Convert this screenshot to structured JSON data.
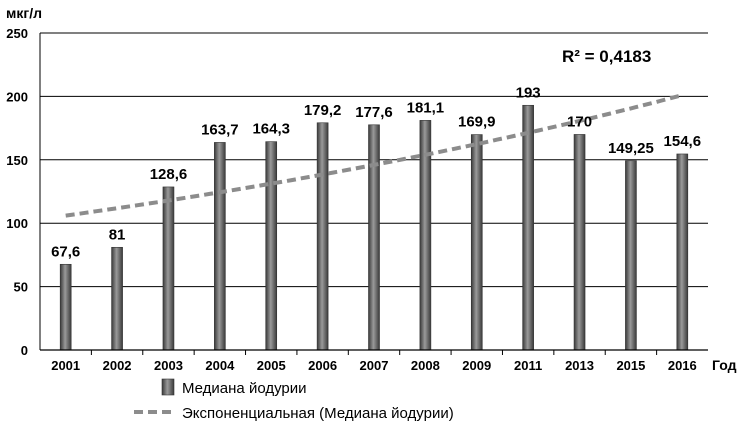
{
  "chart_data": {
    "type": "bar",
    "ylabel": "мкг/л",
    "xlabel": "Год",
    "ylim": [
      0,
      250
    ],
    "yticks": [
      0,
      50,
      100,
      150,
      200,
      250
    ],
    "grid": true,
    "categories": [
      "2001",
      "2002",
      "2003",
      "2004",
      "2005",
      "2006",
      "2007",
      "2008",
      "2009",
      "2011",
      "2013",
      "2015",
      "2016"
    ],
    "series": [
      {
        "name": "Медиана йодурии",
        "values": [
          67.6,
          81,
          128.6,
          163.7,
          164.3,
          179.2,
          177.6,
          181.1,
          169.9,
          193,
          170,
          149.25,
          154.6
        ],
        "labels": [
          "67,6",
          "81",
          "128,6",
          "163,7",
          "164,3",
          "179,2",
          "177,6",
          "181,1",
          "169,9",
          "193",
          "170",
          "149,25",
          "154,6"
        ],
        "color": "#6e6e6e"
      }
    ],
    "trendline": {
      "name": "Экспоненциальная (Медиана йодурии)",
      "type": "exponential",
      "start": 106,
      "end": 201,
      "color": "#8c8c8c"
    },
    "annotation": "R² = 0,4183",
    "legend_position": "bottom"
  }
}
